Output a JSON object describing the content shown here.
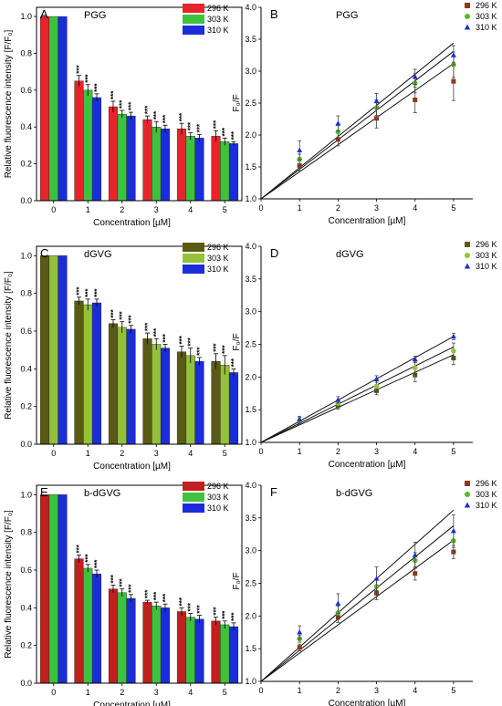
{
  "chart_data": [
    {
      "panel": "A",
      "type": "bar",
      "title": "PGG",
      "xlabel": "Concentration [µM]",
      "ylabel": "Relative fluorescence intensity [F/F₀]",
      "categories": [
        "0",
        "1",
        "2",
        "3",
        "4",
        "5"
      ],
      "ylim": [
        0,
        1.05
      ],
      "yticks": [
        "0.0",
        "0.2",
        "0.4",
        "0.6",
        "0.8",
        "1.0"
      ],
      "legend": "top-right",
      "series": [
        {
          "name": "296 K",
          "color": "#e8242b",
          "values": [
            1.0,
            0.65,
            0.51,
            0.44,
            0.39,
            0.35
          ],
          "errors": [
            0,
            0.03,
            0.03,
            0.02,
            0.03,
            0.03
          ]
        },
        {
          "name": "303 K",
          "color": "#3ec23e",
          "values": [
            1.0,
            0.6,
            0.47,
            0.4,
            0.35,
            0.32
          ],
          "errors": [
            0,
            0.03,
            0.02,
            0.03,
            0.02,
            0.02
          ]
        },
        {
          "name": "310 K",
          "color": "#1a2dd8",
          "values": [
            1.0,
            0.56,
            0.46,
            0.39,
            0.34,
            0.31
          ],
          "errors": [
            0,
            0.02,
            0.02,
            0.02,
            0.02,
            0.01
          ]
        }
      ],
      "significance": "***"
    },
    {
      "panel": "B",
      "type": "scatter",
      "title": "PGG",
      "xlabel": "Concentration [µM]",
      "ylabel": "F₀/F",
      "xlim": [
        0,
        5.5
      ],
      "ylim": [
        1.0,
        4.0
      ],
      "xticks": [
        "0",
        "1",
        "2",
        "3",
        "4",
        "5"
      ],
      "yticks": [
        "1.0",
        "1.5",
        "2.0",
        "2.5",
        "3.0",
        "3.5",
        "4.0"
      ],
      "legend": "top-right",
      "x": [
        1,
        2,
        3,
        4,
        5
      ],
      "series": [
        {
          "name": "296 K",
          "marker": "square",
          "color": "#8b3a1e",
          "y": [
            1.52,
            1.93,
            2.26,
            2.55,
            2.84
          ],
          "errors": [
            0.08,
            0.1,
            0.15,
            0.2,
            0.3
          ],
          "fit_end": 3.12
        },
        {
          "name": "303 K",
          "marker": "circle",
          "color": "#5ab82b",
          "y": [
            1.62,
            2.05,
            2.43,
            2.81,
            3.1
          ],
          "errors": [
            0.08,
            0.1,
            0.12,
            0.15,
            0.2
          ],
          "fit_end": 3.31
        },
        {
          "name": "310 K",
          "marker": "triangle",
          "color": "#1b2fd6",
          "y": [
            1.76,
            2.18,
            2.53,
            2.91,
            3.25
          ],
          "errors": [
            0.15,
            0.12,
            0.12,
            0.12,
            0.15
          ],
          "fit_end": 3.44
        }
      ]
    },
    {
      "panel": "C",
      "type": "bar",
      "title": "dGVG",
      "xlabel": "Concentration [µM]",
      "ylabel": "Relative fluorescence intensity [F/F₀]",
      "categories": [
        "0",
        "1",
        "2",
        "3",
        "4",
        "5"
      ],
      "ylim": [
        0,
        1.05
      ],
      "yticks": [
        "0.0",
        "0.2",
        "0.4",
        "0.6",
        "0.8",
        "1.0"
      ],
      "legend": "top-right",
      "series": [
        {
          "name": "296 K",
          "color": "#5b5a14",
          "values": [
            1.0,
            0.76,
            0.64,
            0.56,
            0.49,
            0.44
          ],
          "errors": [
            0,
            0.02,
            0.02,
            0.03,
            0.03,
            0.04
          ]
        },
        {
          "name": "303 K",
          "color": "#93c23a",
          "values": [
            1.0,
            0.74,
            0.62,
            0.53,
            0.47,
            0.42
          ],
          "errors": [
            0,
            0.03,
            0.03,
            0.03,
            0.04,
            0.05
          ]
        },
        {
          "name": "310 K",
          "color": "#1a2dd8",
          "values": [
            1.0,
            0.75,
            0.61,
            0.51,
            0.44,
            0.38
          ],
          "errors": [
            0,
            0.02,
            0.02,
            0.02,
            0.02,
            0.02
          ]
        }
      ],
      "significance": "***"
    },
    {
      "panel": "D",
      "type": "scatter",
      "title": "dGVG",
      "xlabel": "Concentration [µM]",
      "ylabel": "F₀/F",
      "xlim": [
        0,
        5.5
      ],
      "ylim": [
        1.0,
        4.0
      ],
      "xticks": [
        "0",
        "1",
        "2",
        "3",
        "4",
        "5"
      ],
      "yticks": [
        "1.0",
        "1.5",
        "2.0",
        "2.5",
        "3.0",
        "3.5",
        "4.0"
      ],
      "legend": "top-right",
      "x": [
        1,
        2,
        3,
        4,
        5
      ],
      "series": [
        {
          "name": "296 K",
          "marker": "square",
          "color": "#5b5a14",
          "y": [
            1.31,
            1.56,
            1.79,
            2.03,
            2.29
          ],
          "errors": [
            0.04,
            0.05,
            0.06,
            0.1,
            0.1
          ],
          "fit_end": 2.34
        },
        {
          "name": "303 K",
          "marker": "circle",
          "color": "#93c23a",
          "y": [
            1.33,
            1.6,
            1.86,
            2.14,
            2.4
          ],
          "errors": [
            0.05,
            0.05,
            0.08,
            0.1,
            0.12
          ],
          "fit_end": 2.46
        },
        {
          "name": "310 K",
          "marker": "triangle",
          "color": "#1b2fd6",
          "y": [
            1.35,
            1.65,
            1.97,
            2.27,
            2.62
          ],
          "errors": [
            0.05,
            0.05,
            0.05,
            0.05,
            0.05
          ],
          "fit_end": 2.62
        }
      ]
    },
    {
      "panel": "E",
      "type": "bar",
      "title": "b-dGVG",
      "xlabel": "Concentration [µM]",
      "ylabel": "Relative fluorescence intensity [F/F₀]",
      "categories": [
        "0",
        "1",
        "2",
        "3",
        "4",
        "5"
      ],
      "ylim": [
        0,
        1.05
      ],
      "yticks": [
        "0.0",
        "0.2",
        "0.4",
        "0.6",
        "0.8",
        "1.0"
      ],
      "legend": "top-right",
      "series": [
        {
          "name": "296 K",
          "color": "#c0201e",
          "values": [
            1.0,
            0.66,
            0.5,
            0.43,
            0.38,
            0.33
          ],
          "errors": [
            0,
            0.02,
            0.02,
            0.01,
            0.02,
            0.02
          ]
        },
        {
          "name": "303 K",
          "color": "#3ec23e",
          "values": [
            1.0,
            0.61,
            0.48,
            0.41,
            0.35,
            0.31
          ],
          "errors": [
            0,
            0.02,
            0.02,
            0.02,
            0.02,
            0.02
          ]
        },
        {
          "name": "310 K",
          "color": "#1a2dd8",
          "values": [
            1.0,
            0.58,
            0.45,
            0.4,
            0.34,
            0.3
          ],
          "errors": [
            0,
            0.02,
            0.02,
            0.02,
            0.02,
            0.02
          ]
        }
      ],
      "significance": "***"
    },
    {
      "panel": "F",
      "type": "scatter",
      "title": "b-dGVG",
      "xlabel": "Concentration [µM]",
      "ylabel": "F₀/F",
      "xlim": [
        0,
        5.5
      ],
      "ylim": [
        1.0,
        4.0
      ],
      "xticks": [
        "0",
        "1",
        "2",
        "3",
        "4",
        "5"
      ],
      "yticks": [
        "1.0",
        "1.5",
        "2.0",
        "2.5",
        "3.0",
        "3.5",
        "4.0"
      ],
      "legend": "top-right",
      "x": [
        1,
        2,
        3,
        4,
        5
      ],
      "series": [
        {
          "name": "296 K",
          "marker": "square",
          "color": "#8b3a1e",
          "y": [
            1.52,
            1.98,
            2.35,
            2.65,
            2.98
          ],
          "errors": [
            0.05,
            0.08,
            0.1,
            0.1,
            0.1
          ],
          "fit_end": 3.16
        },
        {
          "name": "303 K",
          "marker": "circle",
          "color": "#5ab82b",
          "y": [
            1.65,
            2.05,
            2.45,
            2.85,
            3.15
          ],
          "errors": [
            0.05,
            0.1,
            0.12,
            0.12,
            0.15
          ],
          "fit_end": 3.38
        },
        {
          "name": "310 K",
          "marker": "triangle",
          "color": "#1b2fd6",
          "y": [
            1.75,
            2.19,
            2.57,
            2.93,
            3.3
          ],
          "errors": [
            0.1,
            0.15,
            0.18,
            0.2,
            0.25
          ],
          "fit_end": 3.62
        }
      ]
    }
  ]
}
